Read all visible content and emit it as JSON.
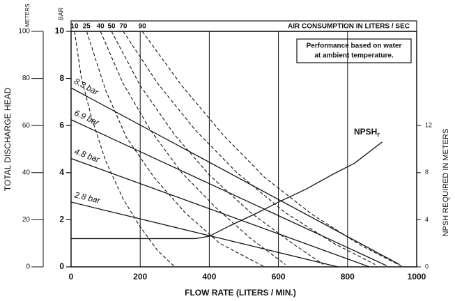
{
  "chart_data": {
    "type": "line",
    "xlabel": "FLOW RATE (LITERS / MIN.)",
    "xlim": [
      0,
      1000
    ],
    "xticks": [
      0,
      200,
      400,
      600,
      800,
      1000
    ],
    "ylabel": "BAR",
    "ylim": [
      0,
      10
    ],
    "yticks": [
      0,
      2,
      4,
      6,
      8,
      10
    ],
    "head_axis": {
      "label": "TOTAL DISCHARGE HEAD",
      "unit": "METERS",
      "lim": [
        0,
        100
      ],
      "ticks": [
        0,
        20,
        40,
        60,
        80,
        100
      ]
    },
    "y2label": "NPSH REQUIRED IN METERS",
    "y2lim": [
      0,
      20
    ],
    "y2ticks": [
      0,
      4,
      8,
      12
    ],
    "air_title": "AIR CONSUMPTION IN LITERS / SEC",
    "note": [
      "Performance based on water",
      "at ambient temperature."
    ],
    "grid": true,
    "series": [
      {
        "name": "8.3 bar",
        "group": "pressure",
        "color": "#111111",
        "x": [
          0,
          950
        ],
        "values": [
          7.6,
          0.1
        ]
      },
      {
        "name": "6.9 bar",
        "group": "pressure",
        "color": "#111111",
        "x": [
          0,
          913
        ],
        "values": [
          6.25,
          0.05
        ]
      },
      {
        "name": "4.8 bar",
        "group": "pressure",
        "color": "#111111",
        "x": [
          0,
          863
        ],
        "values": [
          4.6,
          0
        ]
      },
      {
        "name": "2.8 bar",
        "group": "pressure",
        "color": "#111111",
        "x": [
          0,
          772
        ],
        "values": [
          2.75,
          0
        ]
      },
      {
        "name": "10",
        "group": "air",
        "color": "#111111",
        "x": [
          10,
          30,
          60,
          100,
          150,
          200,
          250,
          300
        ],
        "values": [
          10,
          8,
          6.3,
          4.5,
          2.9,
          1.7,
          0.7,
          0
        ]
      },
      {
        "name": "25",
        "group": "air",
        "color": "#111111",
        "x": [
          45,
          100,
          160,
          240,
          330,
          430,
          560
        ],
        "values": [
          10,
          7.5,
          5.5,
          3.8,
          2.3,
          1.0,
          0
        ]
      },
      {
        "name": "40",
        "group": "air",
        "color": "#111111",
        "x": [
          85,
          150,
          230,
          320,
          420,
          520,
          620
        ],
        "values": [
          10,
          7.8,
          5.8,
          4.0,
          2.5,
          1.2,
          0.1
        ]
      },
      {
        "name": "50",
        "group": "air",
        "color": "#111111",
        "x": [
          117,
          200,
          300,
          400,
          520,
          640,
          730
        ],
        "values": [
          10,
          7.7,
          5.6,
          3.9,
          2.3,
          1.0,
          0.1
        ]
      },
      {
        "name": "70",
        "group": "air",
        "color": "#111111",
        "x": [
          151,
          250,
          360,
          480,
          620,
          760,
          880
        ],
        "values": [
          10,
          7.8,
          5.8,
          4.0,
          2.3,
          1.0,
          0.1
        ]
      },
      {
        "name": "90",
        "group": "air",
        "color": "#111111",
        "x": [
          206,
          320,
          440,
          560,
          700,
          840,
          960
        ],
        "values": [
          10,
          7.7,
          5.6,
          3.8,
          2.2,
          0.9,
          0
        ]
      },
      {
        "name": "NPSH",
        "subscript": "r",
        "group": "npsh",
        "axis": "y2",
        "color": "#111111",
        "x": [
          0,
          360,
          400,
          460,
          540,
          600,
          680,
          760,
          820,
          900
        ],
        "values": [
          2.4,
          2.4,
          2.6,
          3.5,
          4.6,
          5.5,
          6.6,
          7.9,
          8.8,
          10.6
        ]
      }
    ]
  }
}
